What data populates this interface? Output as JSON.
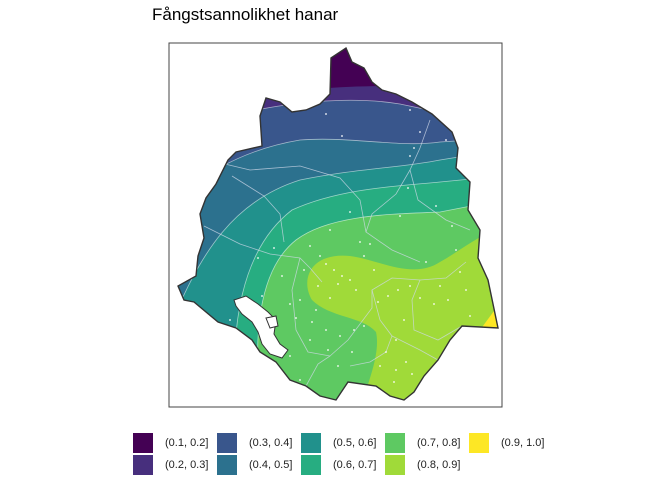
{
  "chart_data": {
    "type": "heatmap",
    "title": "Fångstsannolikhet hanar",
    "xlabel": "",
    "ylabel": "",
    "grid": false,
    "legend_position": "bottom",
    "legend": [
      {
        "label": "(0.1, 0.2]",
        "color": "#440154"
      },
      {
        "label": "(0.2, 0.3]",
        "color": "#472f7d"
      },
      {
        "label": "(0.3, 0.4]",
        "color": "#39568c"
      },
      {
        "label": "(0.4, 0.5]",
        "color": "#2c718e"
      },
      {
        "label": "(0.5, 0.6]",
        "color": "#21918c"
      },
      {
        "label": "(0.6, 0.7]",
        "color": "#27ad81"
      },
      {
        "label": "(0.7, 0.8]",
        "color": "#5ec962"
      },
      {
        "label": "(0.8, 0.9]",
        "color": "#a0da39"
      },
      {
        "label": "(0.9, 1.0]",
        "color": "#fde725"
      }
    ]
  }
}
